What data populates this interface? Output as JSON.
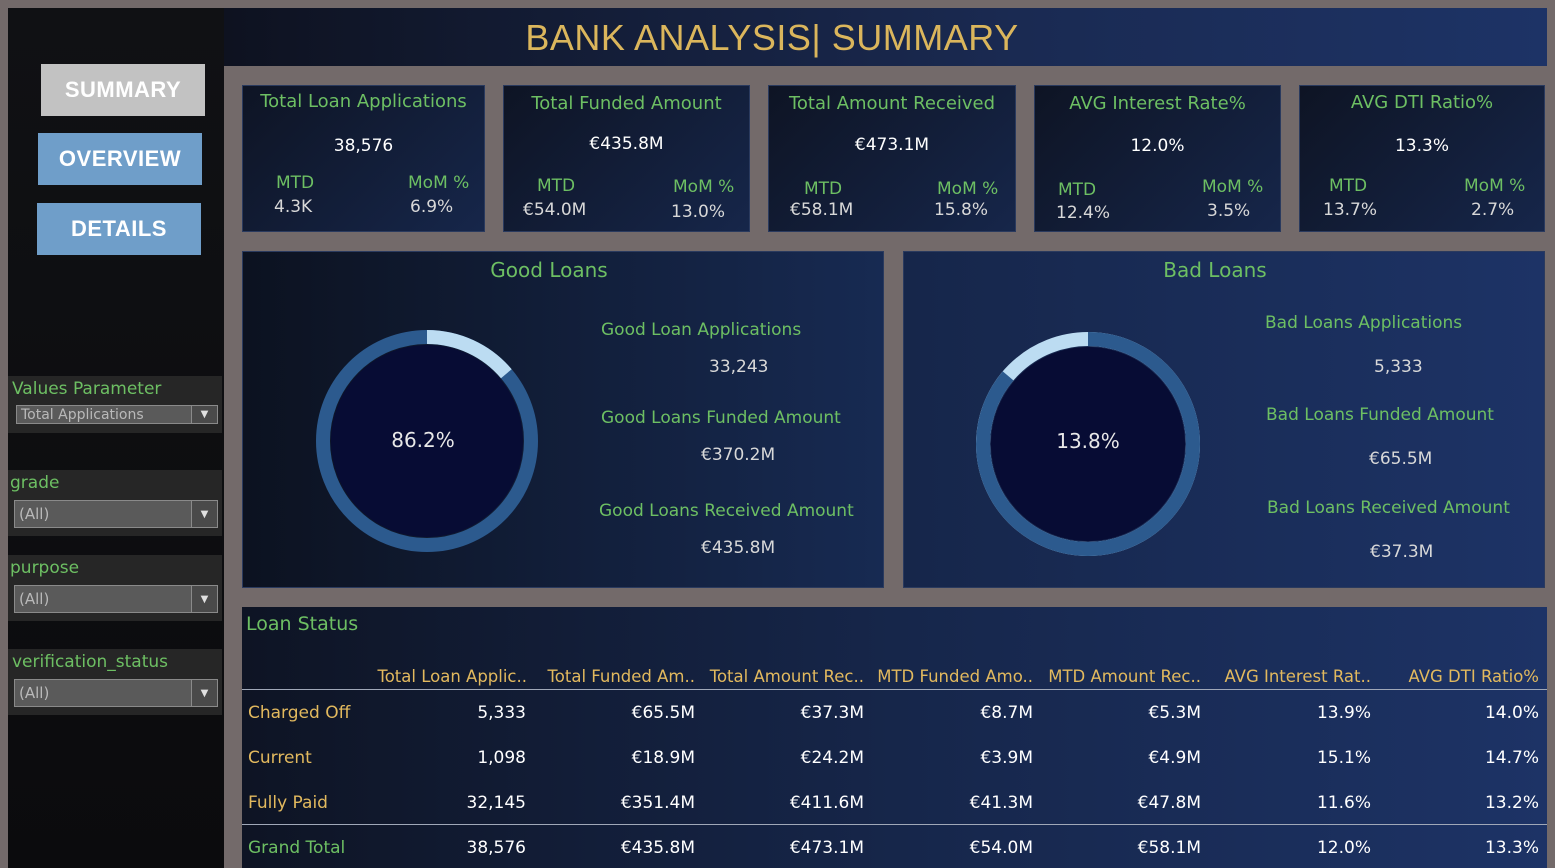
{
  "header": {
    "title": "BANK ANALYSIS| SUMMARY"
  },
  "nav": {
    "summary": "SUMMARY",
    "overview": "OVERVIEW",
    "details": "DETAILS"
  },
  "filters": {
    "values_parameter": {
      "label": "Values Parameter",
      "value": "Total Applications"
    },
    "grade": {
      "label": "grade",
      "value": "(All)"
    },
    "purpose": {
      "label": "purpose",
      "value": "(All)"
    },
    "verification_status": {
      "label": "verification_status",
      "value": "(All)"
    }
  },
  "kpis": [
    {
      "title": "Total Loan Applications",
      "value": "38,576",
      "mtd_label": "MTD",
      "mtd": "4.3K",
      "mom_label": "MoM %",
      "mom": "6.9%"
    },
    {
      "title": "Total Funded Amount",
      "value": "€435.8M",
      "mtd_label": "MTD",
      "mtd": "€54.0M",
      "mom_label": "MoM %",
      "mom": "13.0%"
    },
    {
      "title": "Total Amount Received",
      "value": "€473.1M",
      "mtd_label": "MTD",
      "mtd": "€58.1M",
      "mom_label": "MoM %",
      "mom": "15.8%"
    },
    {
      "title": "AVG Interest Rate%",
      "value": "12.0%",
      "mtd_label": "MTD",
      "mtd": "12.4%",
      "mom_label": "MoM %",
      "mom": "3.5%"
    },
    {
      "title": "AVG DTI Ratio%",
      "value": "13.3%",
      "mtd_label": "MTD",
      "mtd": "13.7%",
      "mom_label": "MoM %",
      "mom": "2.7%"
    }
  ],
  "good_loans": {
    "title": "Good Loans",
    "percent_label": "86.2%",
    "percent": 86.2,
    "applications_label": "Good Loan Applications",
    "applications": "33,243",
    "funded_label": "Good Loans Funded Amount",
    "funded": "€370.2M",
    "received_label": "Good Loans Received Amount",
    "received": "€435.8M"
  },
  "bad_loans": {
    "title": "Bad Loans",
    "percent_label": "13.8%",
    "percent": 13.8,
    "applications_label": "Bad Loans Applications",
    "applications": "5,333",
    "funded_label": "Bad Loans Funded Amount",
    "funded": "€65.5M",
    "received_label": "Bad Loans Received Amount",
    "received": "€37.3M"
  },
  "colors": {
    "ring_dark": "#2c5a8e",
    "ring_light": "#bcdcf2",
    "donut_center": "#070c34"
  },
  "loan_status": {
    "title": "Loan Status",
    "columns": [
      "Total Loan Applic..",
      "Total Funded Am..",
      "Total Amount Rec..",
      "MTD Funded Amo..",
      "MTD Amount Rec..",
      "AVG Interest Rat..",
      "AVG DTI Ratio%"
    ],
    "rows": [
      {
        "label": "Charged Off",
        "values": [
          "5,333",
          "€65.5M",
          "€37.3M",
          "€8.7M",
          "€5.3M",
          "13.9%",
          "14.0%"
        ]
      },
      {
        "label": "Current",
        "values": [
          "1,098",
          "€18.9M",
          "€24.2M",
          "€3.9M",
          "€4.9M",
          "15.1%",
          "14.7%"
        ]
      },
      {
        "label": "Fully Paid",
        "values": [
          "32,145",
          "€351.4M",
          "€411.6M",
          "€41.3M",
          "€47.8M",
          "11.6%",
          "13.2%"
        ]
      }
    ],
    "total": {
      "label": "Grand Total",
      "values": [
        "38,576",
        "€435.8M",
        "€473.1M",
        "€54.0M",
        "€58.1M",
        "12.0%",
        "13.3%"
      ]
    }
  }
}
